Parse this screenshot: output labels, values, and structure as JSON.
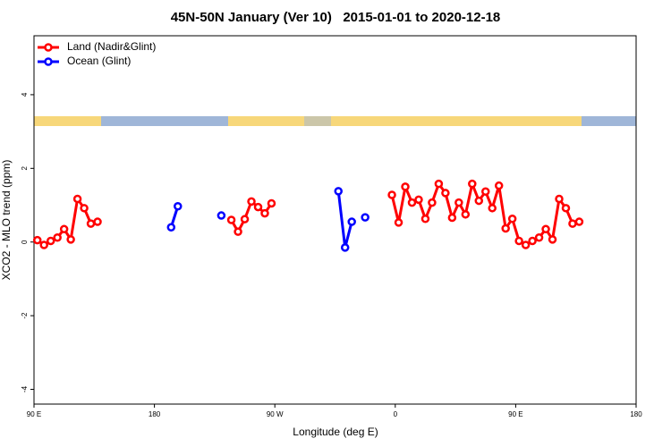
{
  "chart_data": {
    "type": "line",
    "title": "45N-50N January (Ver 10)   2015-01-01 to 2020-12-18",
    "xlabel": "Longitude (deg E)",
    "ylabel": "XCO2 - MLO trend (ppm)",
    "xlim": [
      90,
      540
    ],
    "ylim": [
      -4.4,
      5.6
    ],
    "xticks": [
      {
        "value": 90,
        "label": "90 E"
      },
      180,
      {
        "value": 270,
        "label": "90 W"
      },
      {
        "value": 360,
        "label": "0"
      },
      {
        "value": 450,
        "label": "90 E"
      },
      {
        "value": 540,
        "label": "180"
      }
    ],
    "yticks": [
      -4,
      -2,
      0,
      2,
      4
    ],
    "legend": "top-left",
    "series": [
      {
        "name": "Land (Nadir&Glint)",
        "color": "#ff0000",
        "x": [
          92.5,
          97.5,
          102.5,
          107.5,
          112.5,
          117.5,
          122.5,
          127.5,
          132.5,
          137.5,
          187.5,
          237.5,
          242.5,
          247.5,
          252.5,
          257.5,
          262.5,
          267.5,
          312.5,
          357.5,
          362.5,
          367.5,
          372.5,
          377.5,
          382.5,
          387.5,
          392.5,
          397.5,
          402.5,
          407.5,
          412.5,
          417.5,
          422.5,
          427.5,
          432.5,
          437.5,
          442.5,
          447.5,
          452.5,
          457.5,
          462.5,
          467.5,
          472.5,
          477.5,
          482.5,
          487.5,
          492.5,
          497.5
        ],
        "values": [
          0.05,
          -0.08,
          0.03,
          0.12,
          0.35,
          0.07,
          1.17,
          0.92,
          0.5,
          0.55,
          null,
          0.6,
          0.28,
          0.62,
          1.1,
          0.95,
          0.78,
          1.05,
          null,
          1.28,
          0.53,
          1.5,
          1.07,
          1.15,
          0.63,
          1.07,
          1.58,
          1.33,
          0.66,
          1.07,
          0.75,
          1.58,
          1.12,
          1.37,
          0.92,
          1.53,
          0.37,
          0.63,
          0.03,
          -0.08,
          0.03,
          0.12,
          0.35,
          0.07,
          1.17,
          0.92,
          0.5,
          0.55
        ]
      },
      {
        "name": "Ocean (Glint)",
        "color": "#0000ff",
        "x": [
          192.5,
          197.5,
          212.5,
          230,
          250,
          317.5,
          322.5,
          327.5,
          332.5,
          337.5
        ],
        "values": [
          0.4,
          0.97,
          null,
          0.72,
          null,
          1.38,
          -0.15,
          0.55,
          null,
          0.67
        ]
      }
    ]
  }
}
